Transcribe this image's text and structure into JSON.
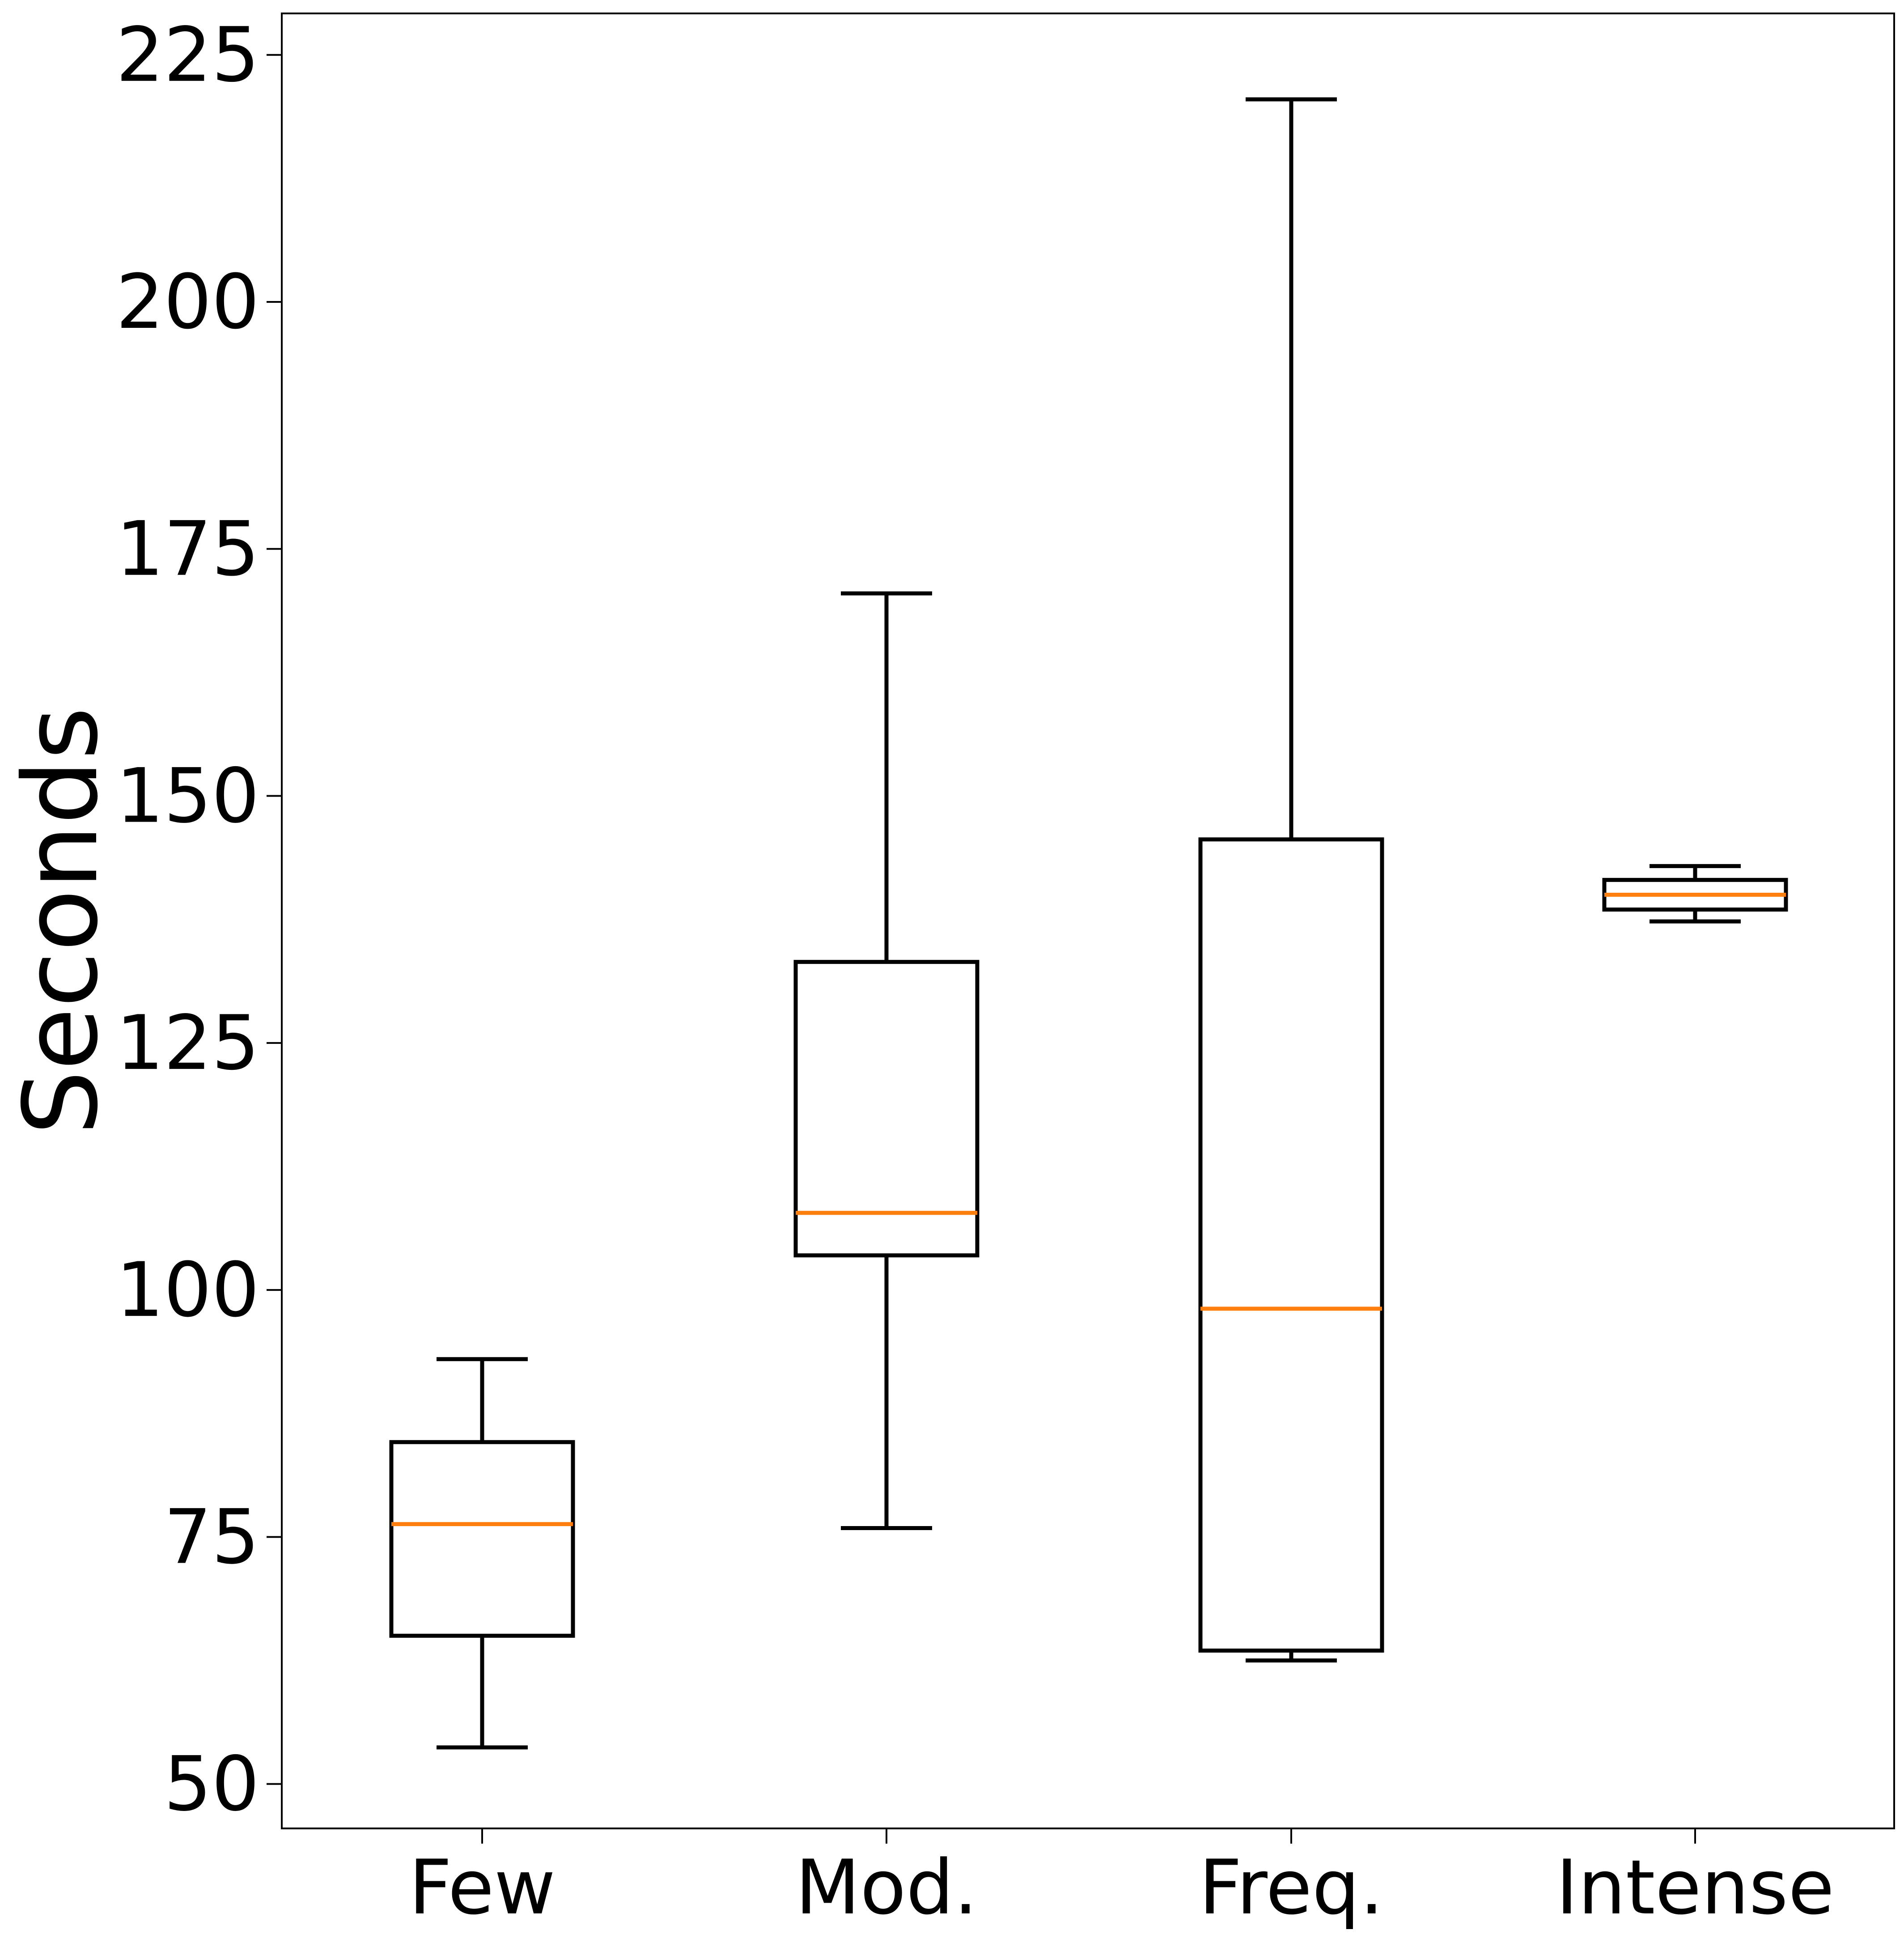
{
  "chart_data": {
    "type": "boxplot",
    "title": "",
    "xlabel": "",
    "ylabel": "Seconds",
    "ylim": [
      45.5,
      229.2
    ],
    "yticks": [
      50,
      75,
      100,
      125,
      150,
      175,
      200,
      225
    ],
    "ytick_labels": [
      "50",
      "75",
      "100",
      "125",
      "150",
      "175",
      "200",
      "225"
    ],
    "categories": [
      "Few",
      "Mod.",
      "Freq.",
      "Intense"
    ],
    "boxes": [
      {
        "category": "Few",
        "whisker_low": 53.7,
        "q1": 65.0,
        "median": 76.3,
        "q3": 84.6,
        "whisker_high": 93.0
      },
      {
        "category": "Mod.",
        "whisker_low": 75.9,
        "q1": 103.5,
        "median": 107.8,
        "q3": 133.2,
        "whisker_high": 170.5
      },
      {
        "category": "Freq.",
        "whisker_low": 62.5,
        "q1": 63.5,
        "median": 98.1,
        "q3": 145.6,
        "whisker_high": 220.5
      },
      {
        "category": "Intense",
        "whisker_low": 137.3,
        "q1": 138.5,
        "median": 140.0,
        "q3": 141.5,
        "whisker_high": 142.9
      }
    ],
    "median_color": "#ff7f0e",
    "box_color": "#000000",
    "grid": false,
    "legend": "none"
  }
}
